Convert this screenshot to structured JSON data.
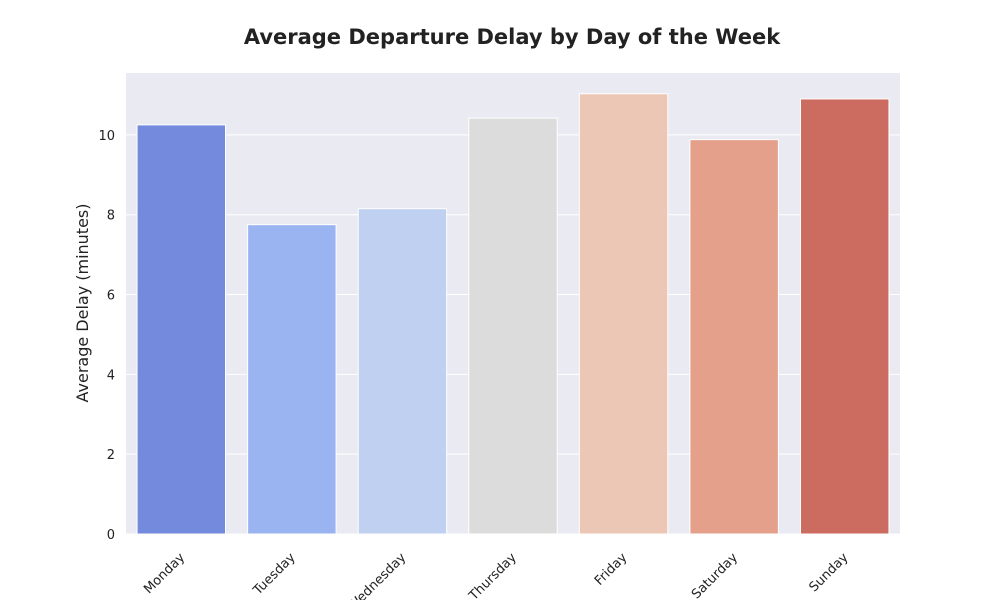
{
  "chart_data": {
    "type": "bar",
    "title": "Average Departure Delay by Day of the Week",
    "xlabel": "",
    "ylabel": "Average Delay (minutes)",
    "categories": [
      "Monday",
      "Tuesday",
      "Wednesday",
      "Thursday",
      "Friday",
      "Saturday",
      "Sunday"
    ],
    "values": [
      10.25,
      7.75,
      8.15,
      10.42,
      11.03,
      9.88,
      10.9
    ],
    "colors": [
      "#748bdd",
      "#9ab4f2",
      "#c0d0f0",
      "#dcdcdc",
      "#ecc7b5",
      "#e4a08a",
      "#cc6b5f"
    ],
    "ylim": [
      0,
      11.55
    ],
    "yticks": [
      0,
      2,
      4,
      6,
      8,
      10
    ],
    "grid": true,
    "plot_background": "#eaeaf2",
    "grid_color": "#ffffff"
  }
}
